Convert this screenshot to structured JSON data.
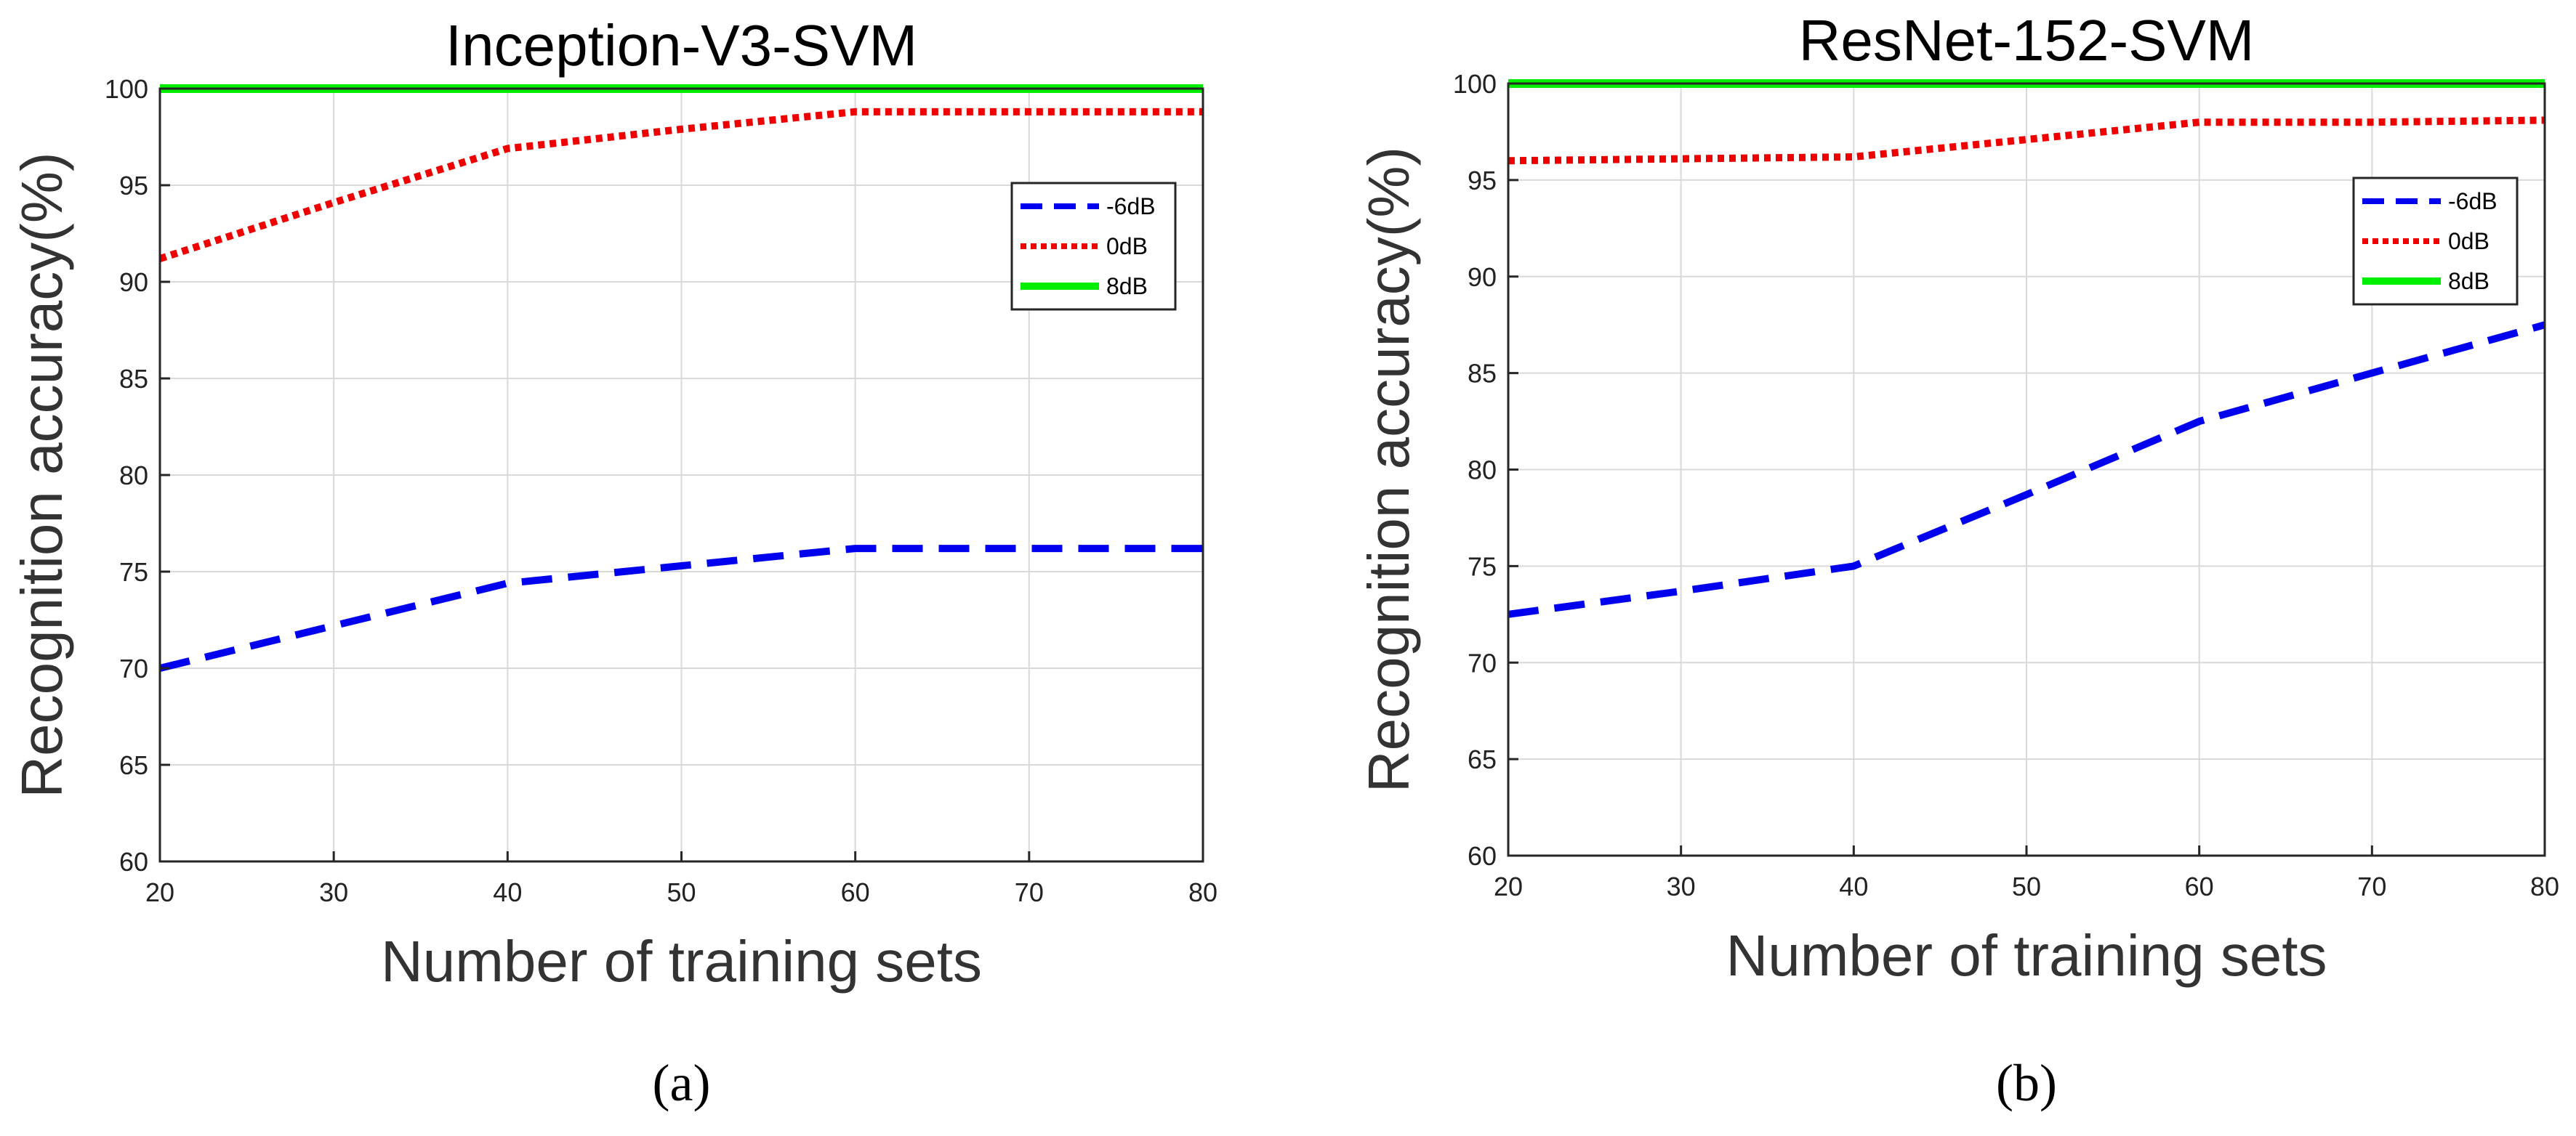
{
  "chart_data": [
    {
      "type": "line",
      "panel_caption": "(a)",
      "title": "Inception-V3-SVM",
      "xlabel": "Number of training sets",
      "ylabel": "Recognition accuracy(%)",
      "xlim": [
        20,
        80
      ],
      "ylim": [
        60,
        100
      ],
      "xticks": [
        20,
        30,
        40,
        50,
        60,
        70,
        80
      ],
      "yticks": [
        60,
        65,
        70,
        75,
        80,
        85,
        90,
        95,
        100
      ],
      "grid": true,
      "legend_position": "top-right",
      "series": [
        {
          "name": "-6dB",
          "style": "dashed",
          "color": "#0000ee",
          "x": [
            20,
            30,
            40,
            50,
            60,
            70,
            80
          ],
          "y": [
            70,
            72.2,
            74.4,
            75.3,
            76.2,
            76.2,
            76.2
          ]
        },
        {
          "name": "0dB",
          "style": "dotted",
          "color": "#ee0000",
          "x": [
            20,
            30,
            40,
            50,
            60,
            70,
            80
          ],
          "y": [
            91.2,
            94.1,
            96.9,
            97.9,
            98.8,
            98.8,
            98.8
          ]
        },
        {
          "name": "8dB",
          "style": "solid",
          "color": "#00ee00",
          "x": [
            20,
            30,
            40,
            50,
            60,
            70,
            80
          ],
          "y": [
            100,
            100,
            100,
            100,
            100,
            100,
            100
          ]
        }
      ]
    },
    {
      "type": "line",
      "panel_caption": "(b)",
      "title": "ResNet-152-SVM",
      "xlabel": "Number of training sets",
      "ylabel": "Recognition accuracy(%)",
      "xlim": [
        20,
        80
      ],
      "ylim": [
        60,
        100
      ],
      "xticks": [
        20,
        30,
        40,
        50,
        60,
        70,
        80
      ],
      "yticks": [
        60,
        65,
        70,
        75,
        80,
        85,
        90,
        95,
        100
      ],
      "grid": true,
      "legend_position": "top-right",
      "series": [
        {
          "name": "-6dB",
          "style": "dashed",
          "color": "#0000ee",
          "x": [
            20,
            30,
            40,
            50,
            60,
            70,
            80
          ],
          "y": [
            72.5,
            73.7,
            75,
            78.7,
            82.5,
            85,
            87.5
          ]
        },
        {
          "name": "0dB",
          "style": "dotted",
          "color": "#ee0000",
          "x": [
            20,
            30,
            40,
            50,
            60,
            70,
            80
          ],
          "y": [
            96,
            96.1,
            96.2,
            97.1,
            98,
            98,
            98.1
          ]
        },
        {
          "name": "8dB",
          "style": "solid",
          "color": "#00ee00",
          "x": [
            20,
            30,
            40,
            50,
            60,
            70,
            80
          ],
          "y": [
            100,
            100,
            100,
            100,
            100,
            100,
            100
          ]
        }
      ]
    }
  ]
}
